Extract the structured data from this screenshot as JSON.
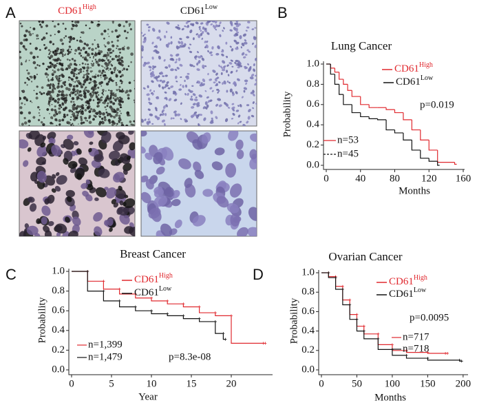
{
  "panel_a": {
    "label": "A",
    "columns": [
      {
        "name": "CD61",
        "superscript": "High",
        "color": "#e0282e"
      },
      {
        "name": "CD61",
        "superscript": "Low",
        "color": "#111111"
      }
    ]
  },
  "chart_data": [
    {
      "type": "line",
      "panel": "B",
      "title": "Lung Cancer",
      "xlabel": "Months",
      "ylabel": "Probability",
      "xlim": [
        0,
        160
      ],
      "xticks": [
        0,
        40,
        80,
        120,
        160
      ],
      "ylim": [
        0,
        1
      ],
      "yticks": [
        {
          "value": 0,
          "label": "0.0"
        },
        0.2,
        0.4,
        0.6,
        0.8,
        {
          "value": 1,
          "label": "1.0"
        }
      ],
      "annotation": "p=0.019",
      "series": [
        {
          "name": "CD61",
          "superscript": "High",
          "color": "#e0282e",
          "n_label": "n=53",
          "linestyle": "solid",
          "x": [
            0,
            5,
            10,
            15,
            20,
            25,
            30,
            40,
            50,
            60,
            70,
            80,
            90,
            100,
            110,
            120,
            130,
            150
          ],
          "values": [
            1,
            0.96,
            0.92,
            0.85,
            0.8,
            0.74,
            0.68,
            0.6,
            0.57,
            0.57,
            0.55,
            0.52,
            0.45,
            0.35,
            0.25,
            0.15,
            0.03,
            0.01
          ]
        },
        {
          "name": "CD61",
          "superscript": "Low",
          "color": "#111111",
          "n_label": "n=45",
          "linestyle": "dashed",
          "x": [
            0,
            5,
            10,
            15,
            20,
            30,
            40,
            50,
            60,
            70,
            80,
            90,
            100,
            110,
            120,
            130
          ],
          "values": [
            1,
            0.9,
            0.8,
            0.7,
            0.6,
            0.52,
            0.48,
            0.46,
            0.45,
            0.35,
            0.32,
            0.25,
            0.15,
            0.07,
            0.04,
            0
          ]
        }
      ]
    },
    {
      "type": "line",
      "panel": "C",
      "title": "Breast Cancer",
      "xlabel": "Year",
      "ylabel": "Probability",
      "xlim": [
        0,
        25
      ],
      "xticks": [
        0,
        5,
        10,
        15,
        20
      ],
      "ylim": [
        0,
        1
      ],
      "yticks": [
        {
          "value": 0,
          "label": "0.0"
        },
        0.2,
        0.4,
        0.6,
        0.8,
        {
          "value": 1,
          "label": "1.0"
        }
      ],
      "annotation": "p=8.3e-08",
      "series": [
        {
          "name": "CD61",
          "superscript": "High",
          "color": "#e0282e",
          "n_label": "n=1,399",
          "linestyle": "solid",
          "x": [
            0,
            2,
            4,
            6,
            8,
            10,
            12,
            14,
            16,
            18,
            20,
            24
          ],
          "values": [
            1,
            0.9,
            0.82,
            0.77,
            0.73,
            0.7,
            0.67,
            0.64,
            0.58,
            0.55,
            0.27,
            0.27
          ]
        },
        {
          "name": "CD61",
          "superscript": "Low",
          "color": "#111111",
          "n_label": "n=1,479",
          "linestyle": "solid",
          "x": [
            0,
            2,
            4,
            6,
            8,
            10,
            12,
            14,
            16,
            18,
            19
          ],
          "values": [
            1,
            0.8,
            0.7,
            0.64,
            0.6,
            0.57,
            0.55,
            0.52,
            0.49,
            0.37,
            0.31
          ]
        }
      ]
    },
    {
      "type": "line",
      "panel": "D",
      "title": "Ovarian Cancer",
      "xlabel": "Months",
      "ylabel": "Probability",
      "xlim": [
        0,
        205
      ],
      "xticks": [
        0,
        50,
        100,
        150,
        200
      ],
      "ylim": [
        0,
        1
      ],
      "yticks": [
        {
          "value": 0,
          "label": "0.0"
        },
        0.2,
        0.4,
        0.6,
        0.8,
        {
          "value": 1,
          "label": "1.0"
        }
      ],
      "annotation": "p=0.0095",
      "series": [
        {
          "name": "CD61",
          "superscript": "High",
          "color": "#e0282e",
          "n_label": "n=717",
          "linestyle": "solid",
          "x": [
            0,
            10,
            20,
            30,
            40,
            50,
            60,
            80,
            100,
            120,
            150,
            175
          ],
          "values": [
            1,
            0.96,
            0.86,
            0.72,
            0.57,
            0.45,
            0.37,
            0.26,
            0.2,
            0.18,
            0.17,
            0.17
          ]
        },
        {
          "name": "CD61",
          "superscript": "Low",
          "color": "#111111",
          "n_label": "n=718",
          "linestyle": "solid",
          "x": [
            0,
            10,
            20,
            30,
            40,
            50,
            60,
            80,
            100,
            120,
            150,
            195
          ],
          "values": [
            1,
            0.95,
            0.83,
            0.67,
            0.52,
            0.4,
            0.32,
            0.21,
            0.15,
            0.12,
            0.1,
            0.09
          ]
        }
      ]
    }
  ]
}
